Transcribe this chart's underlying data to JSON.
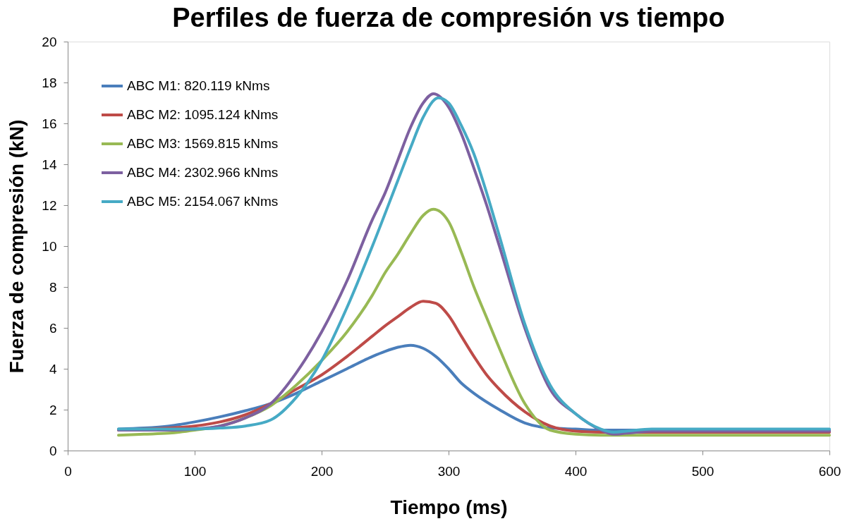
{
  "chart_data": {
    "type": "line",
    "title": "Perfiles de fuerza de compresión vs tiempo",
    "xlabel": "Tiempo (ms)",
    "ylabel": "Fuerza de compresión (kN)",
    "xlim": [
      0,
      600
    ],
    "xticks": [
      0,
      100,
      200,
      300,
      400,
      500,
      600
    ],
    "ylim": [
      0,
      20
    ],
    "yticks": [
      0,
      2,
      4,
      6,
      8,
      10,
      12,
      14,
      16,
      18,
      20
    ],
    "grid": false,
    "legend": "top left",
    "marker": "none",
    "line_style": "solid",
    "series": [
      {
        "name": "ABC M1:   820.119 kNms",
        "color": "#4a7ebb",
        "x": [
          40,
          60,
          80,
          100,
          120,
          140,
          160,
          180,
          200,
          220,
          240,
          250,
          260,
          270,
          280,
          290,
          300,
          310,
          320,
          340,
          360,
          380,
          400,
          420,
          440,
          500,
          600
        ],
        "values": [
          1.05,
          1.1,
          1.2,
          1.4,
          1.65,
          1.95,
          2.3,
          2.8,
          3.4,
          4.0,
          4.6,
          4.85,
          5.05,
          5.15,
          5.0,
          4.6,
          4.0,
          3.3,
          2.8,
          2.0,
          1.35,
          1.1,
          1.05,
          1.0,
          1.0,
          1.0,
          1.0
        ]
      },
      {
        "name": "ABC M2: 1095.124 kNms",
        "color": "#be4b48",
        "x": [
          40,
          60,
          80,
          100,
          120,
          140,
          160,
          180,
          200,
          220,
          240,
          250,
          260,
          270,
          280,
          290,
          300,
          310,
          320,
          330,
          340,
          360,
          380,
          400,
          420,
          440,
          500,
          600
        ],
        "values": [
          1.0,
          1.05,
          1.1,
          1.2,
          1.4,
          1.75,
          2.3,
          3.0,
          3.7,
          4.6,
          5.6,
          6.1,
          6.55,
          7.0,
          7.3,
          7.2,
          6.6,
          5.6,
          4.6,
          3.7,
          3.0,
          1.9,
          1.2,
          0.95,
          0.9,
          0.9,
          0.9,
          0.9
        ]
      },
      {
        "name": "ABC M3: 1569.815 kNms",
        "color": "#98b954",
        "x": [
          40,
          60,
          80,
          100,
          120,
          140,
          160,
          180,
          200,
          220,
          240,
          250,
          260,
          270,
          280,
          288,
          300,
          310,
          320,
          330,
          340,
          360,
          380,
          400,
          420,
          440,
          500,
          600
        ],
        "values": [
          0.75,
          0.8,
          0.85,
          1.0,
          1.2,
          1.6,
          2.2,
          3.2,
          4.4,
          5.8,
          7.6,
          8.7,
          9.6,
          10.6,
          11.5,
          11.8,
          11.2,
          9.7,
          8.0,
          6.5,
          5.0,
          2.3,
          1.0,
          0.8,
          0.75,
          0.75,
          0.75,
          0.75
        ]
      },
      {
        "name": "ABC M4: 2302.966 kNms",
        "color": "#7d60a0",
        "x": [
          40,
          60,
          80,
          100,
          120,
          140,
          160,
          180,
          200,
          220,
          240,
          250,
          260,
          270,
          280,
          288,
          300,
          310,
          320,
          330,
          340,
          360,
          380,
          400,
          420,
          430,
          440,
          460,
          500,
          600
        ],
        "values": [
          1.0,
          1.0,
          1.0,
          1.05,
          1.2,
          1.6,
          2.3,
          3.8,
          5.8,
          8.3,
          11.3,
          12.6,
          14.2,
          15.8,
          17.0,
          17.45,
          16.8,
          15.5,
          13.8,
          12.0,
          10.0,
          6.0,
          3.0,
          1.8,
          1.0,
          0.8,
          0.85,
          0.95,
          0.95,
          0.95
        ]
      },
      {
        "name": "ABC M5: 2154.067 kNms",
        "color": "#46aac5",
        "x": [
          40,
          60,
          80,
          100,
          120,
          140,
          160,
          180,
          200,
          220,
          240,
          260,
          270,
          280,
          292,
          300,
          310,
          320,
          330,
          340,
          360,
          380,
          400,
          420,
          430,
          440,
          460,
          500,
          600
        ],
        "values": [
          1.05,
          1.05,
          1.05,
          1.05,
          1.1,
          1.2,
          1.5,
          2.6,
          4.4,
          7.0,
          10.0,
          13.2,
          14.8,
          16.3,
          17.25,
          17.0,
          15.9,
          14.5,
          12.6,
          10.5,
          6.2,
          3.2,
          1.8,
          1.05,
          0.9,
          0.95,
          1.05,
          1.05,
          1.05
        ]
      }
    ]
  }
}
